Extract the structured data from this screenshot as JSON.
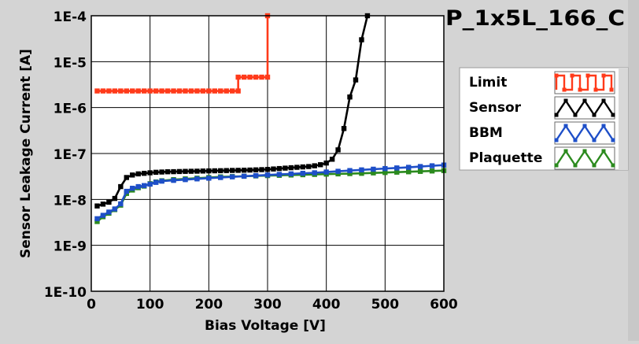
{
  "chart_data": {
    "type": "line",
    "title": "P_1x5L_166_C",
    "xlabel": "Bias Voltage [V]",
    "ylabel": "Sensor Leakage Current [A]",
    "xlim": [
      0,
      600
    ],
    "ylim": [
      1e-10,
      0.0001
    ],
    "y_scale": "log",
    "grid": true,
    "legend_position": "right",
    "x_ticks": [
      {
        "value": 0,
        "label": "0"
      },
      {
        "value": 100,
        "label": "100"
      },
      {
        "value": 200,
        "label": "200"
      },
      {
        "value": 300,
        "label": "300"
      },
      {
        "value": 400,
        "label": "400"
      },
      {
        "value": 500,
        "label": "500"
      },
      {
        "value": 600,
        "label": "600"
      }
    ],
    "y_ticks": [
      {
        "value": 0.0001,
        "label": "1E-4"
      },
      {
        "value": 1e-05,
        "label": "1E-5"
      },
      {
        "value": 1e-06,
        "label": "1E-6"
      },
      {
        "value": 1e-07,
        "label": "1E-7"
      },
      {
        "value": 1e-08,
        "label": "1E-8"
      },
      {
        "value": 1e-09,
        "label": "1E-9"
      },
      {
        "value": 1e-10,
        "label": "1E-10"
      }
    ],
    "series": [
      {
        "name": "Limit",
        "color": "#ff3a1a",
        "marker": "square",
        "points": [
          [
            10,
            2.3e-06
          ],
          [
            20,
            2.3e-06
          ],
          [
            30,
            2.3e-06
          ],
          [
            40,
            2.3e-06
          ],
          [
            50,
            2.3e-06
          ],
          [
            60,
            2.3e-06
          ],
          [
            70,
            2.3e-06
          ],
          [
            80,
            2.3e-06
          ],
          [
            90,
            2.3e-06
          ],
          [
            100,
            2.3e-06
          ],
          [
            110,
            2.3e-06
          ],
          [
            120,
            2.3e-06
          ],
          [
            130,
            2.3e-06
          ],
          [
            140,
            2.3e-06
          ],
          [
            150,
            2.3e-06
          ],
          [
            160,
            2.3e-06
          ],
          [
            170,
            2.3e-06
          ],
          [
            180,
            2.3e-06
          ],
          [
            190,
            2.3e-06
          ],
          [
            200,
            2.3e-06
          ],
          [
            210,
            2.3e-06
          ],
          [
            220,
            2.3e-06
          ],
          [
            230,
            2.3e-06
          ],
          [
            240,
            2.3e-06
          ],
          [
            250,
            2.3e-06
          ],
          [
            250,
            4.6e-06
          ],
          [
            260,
            4.6e-06
          ],
          [
            270,
            4.6e-06
          ],
          [
            280,
            4.6e-06
          ],
          [
            290,
            4.6e-06
          ],
          [
            300,
            4.6e-06
          ],
          [
            300,
            0.0001
          ]
        ]
      },
      {
        "name": "Sensor",
        "color": "#000000",
        "marker": "square",
        "points": [
          [
            10,
            7.2e-09
          ],
          [
            20,
            7.9e-09
          ],
          [
            30,
            8.7e-09
          ],
          [
            40,
            1.05e-08
          ],
          [
            50,
            1.9e-08
          ],
          [
            60,
            3e-08
          ],
          [
            70,
            3.4e-08
          ],
          [
            80,
            3.6e-08
          ],
          [
            90,
            3.7e-08
          ],
          [
            100,
            3.8e-08
          ],
          [
            110,
            3.9e-08
          ],
          [
            120,
            3.95e-08
          ],
          [
            130,
            4e-08
          ],
          [
            140,
            4.02e-08
          ],
          [
            150,
            4.05e-08
          ],
          [
            160,
            4.08e-08
          ],
          [
            170,
            4.1e-08
          ],
          [
            180,
            4.12e-08
          ],
          [
            190,
            4.15e-08
          ],
          [
            200,
            4.18e-08
          ],
          [
            210,
            4.2e-08
          ],
          [
            220,
            4.22e-08
          ],
          [
            230,
            4.25e-08
          ],
          [
            240,
            4.28e-08
          ],
          [
            250,
            4.3e-08
          ],
          [
            260,
            4.33e-08
          ],
          [
            270,
            4.36e-08
          ],
          [
            280,
            4.4e-08
          ],
          [
            290,
            4.45e-08
          ],
          [
            300,
            4.5e-08
          ],
          [
            310,
            4.6e-08
          ],
          [
            320,
            4.7e-08
          ],
          [
            330,
            4.8e-08
          ],
          [
            340,
            4.9e-08
          ],
          [
            350,
            5e-08
          ],
          [
            360,
            5.1e-08
          ],
          [
            370,
            5.2e-08
          ],
          [
            380,
            5.4e-08
          ],
          [
            390,
            5.7e-08
          ],
          [
            400,
            6.2e-08
          ],
          [
            410,
            7.5e-08
          ],
          [
            420,
            1.2e-07
          ],
          [
            430,
            3.5e-07
          ],
          [
            440,
            1.7e-06
          ],
          [
            450,
            4e-06
          ],
          [
            460,
            3e-05
          ],
          [
            470,
            0.0001
          ]
        ]
      },
      {
        "name": "BBM",
        "color": "#1e4fc8",
        "marker": "square",
        "points": [
          [
            10,
            3.8e-09
          ],
          [
            20,
            4.5e-09
          ],
          [
            30,
            5.3e-09
          ],
          [
            40,
            6.2e-09
          ],
          [
            50,
            8e-09
          ],
          [
            60,
            1.5e-08
          ],
          [
            70,
            1.75e-08
          ],
          [
            80,
            1.9e-08
          ],
          [
            90,
            2e-08
          ],
          [
            100,
            2.15e-08
          ],
          [
            110,
            2.35e-08
          ],
          [
            120,
            2.5e-08
          ],
          [
            140,
            2.6e-08
          ],
          [
            160,
            2.7e-08
          ],
          [
            180,
            2.8e-08
          ],
          [
            200,
            2.9e-08
          ],
          [
            220,
            3e-08
          ],
          [
            240,
            3.1e-08
          ],
          [
            260,
            3.2e-08
          ],
          [
            280,
            3.3e-08
          ],
          [
            300,
            3.4e-08
          ],
          [
            320,
            3.5e-08
          ],
          [
            340,
            3.6e-08
          ],
          [
            360,
            3.7e-08
          ],
          [
            380,
            3.8e-08
          ],
          [
            400,
            3.95e-08
          ],
          [
            420,
            4.1e-08
          ],
          [
            440,
            4.25e-08
          ],
          [
            460,
            4.4e-08
          ],
          [
            480,
            4.55e-08
          ],
          [
            500,
            4.7e-08
          ],
          [
            520,
            4.85e-08
          ],
          [
            540,
            5e-08
          ],
          [
            560,
            5.2e-08
          ],
          [
            580,
            5.4e-08
          ],
          [
            600,
            5.6e-08
          ]
        ]
      },
      {
        "name": "Plaquette",
        "color": "#2b8a1e",
        "marker": "square",
        "points": [
          [
            10,
            3.3e-09
          ],
          [
            20,
            4.2e-09
          ],
          [
            30,
            5e-09
          ],
          [
            40,
            6e-09
          ],
          [
            50,
            7.5e-09
          ],
          [
            60,
            1.35e-08
          ],
          [
            70,
            1.6e-08
          ],
          [
            80,
            1.8e-08
          ],
          [
            90,
            1.95e-08
          ],
          [
            100,
            2.2e-08
          ],
          [
            110,
            2.4e-08
          ],
          [
            120,
            2.55e-08
          ],
          [
            140,
            2.7e-08
          ],
          [
            160,
            2.8e-08
          ],
          [
            180,
            2.9e-08
          ],
          [
            200,
            3e-08
          ],
          [
            220,
            3.1e-08
          ],
          [
            240,
            3.15e-08
          ],
          [
            260,
            3.2e-08
          ],
          [
            280,
            3.25e-08
          ],
          [
            300,
            3.3e-08
          ],
          [
            320,
            3.35e-08
          ],
          [
            340,
            3.4e-08
          ],
          [
            360,
            3.45e-08
          ],
          [
            380,
            3.5e-08
          ],
          [
            400,
            3.55e-08
          ],
          [
            420,
            3.6e-08
          ],
          [
            440,
            3.65e-08
          ],
          [
            460,
            3.7e-08
          ],
          [
            480,
            3.78e-08
          ],
          [
            500,
            3.85e-08
          ],
          [
            520,
            3.92e-08
          ],
          [
            540,
            4e-08
          ],
          [
            560,
            4.08e-08
          ],
          [
            580,
            4.16e-08
          ],
          [
            600,
            4.25e-08
          ]
        ]
      }
    ]
  }
}
